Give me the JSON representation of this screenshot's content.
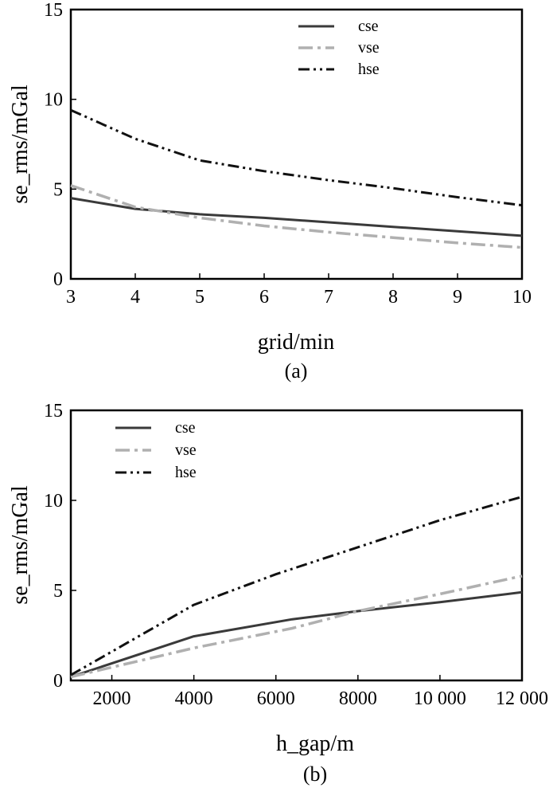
{
  "chart_data": [
    {
      "type": "line",
      "panel_label": "(a)",
      "xlabel": "grid/min",
      "ylabel": "se_rms/mGal",
      "xlim": [
        3,
        10
      ],
      "ylim": [
        0,
        15
      ],
      "xticks": [
        3,
        4,
        5,
        6,
        7,
        8,
        9,
        10
      ],
      "xtick_labels": [
        "3",
        "4",
        "5",
        "6",
        "7",
        "8",
        "9",
        "10"
      ],
      "yticks": [
        0,
        5,
        10,
        15
      ],
      "ytick_labels": [
        "0",
        "5",
        "10",
        "15"
      ],
      "legend_position": "top-right",
      "series": [
        {
          "name": "cse",
          "x": [
            3,
            4,
            5,
            6,
            7,
            8,
            9,
            10
          ],
          "values": [
            4.5,
            3.9,
            3.6,
            3.4,
            3.15,
            2.9,
            2.65,
            2.4
          ]
        },
        {
          "name": "vse",
          "x": [
            3,
            4,
            5,
            6,
            7,
            8,
            9,
            10
          ],
          "values": [
            5.2,
            4.0,
            3.4,
            2.95,
            2.6,
            2.3,
            2.0,
            1.75
          ]
        },
        {
          "name": "hse",
          "x": [
            3,
            4,
            5,
            6,
            7,
            8,
            9,
            10
          ],
          "values": [
            9.4,
            7.8,
            6.6,
            6.0,
            5.5,
            5.05,
            4.55,
            4.1
          ]
        }
      ]
    },
    {
      "type": "line",
      "panel_label": "(b)",
      "xlabel": "h_gap/m",
      "ylabel": "se_rms/mGal",
      "xlim": [
        1000,
        12000
      ],
      "ylim": [
        0,
        15
      ],
      "xticks": [
        2000,
        4000,
        6000,
        8000,
        10000,
        12000
      ],
      "xtick_labels": [
        "2000",
        "4000",
        "6000",
        "8000",
        "10 000",
        "12 000"
      ],
      "yticks": [
        0,
        5,
        10,
        15
      ],
      "ytick_labels": [
        "0",
        "5",
        "10",
        "15"
      ],
      "legend_position": "top-left",
      "series": [
        {
          "name": "cse",
          "x": [
            1000,
            4000,
            6400,
            8000,
            10000,
            12000
          ],
          "values": [
            0.2,
            2.45,
            3.4,
            3.85,
            4.35,
            4.9
          ]
        },
        {
          "name": "vse",
          "x": [
            1000,
            4000,
            6400,
            8000,
            10000,
            12000
          ],
          "values": [
            0.2,
            1.8,
            2.9,
            3.85,
            4.8,
            5.8
          ]
        },
        {
          "name": "hse",
          "x": [
            1000,
            4000,
            6000,
            8000,
            10000,
            12000
          ],
          "values": [
            0.3,
            4.2,
            5.9,
            7.4,
            8.9,
            10.2
          ]
        }
      ]
    }
  ],
  "styles": {
    "cse": {
      "color": "#3a3a3a",
      "dash": "solid"
    },
    "vse": {
      "color": "#b0b0b0",
      "dash": "dash-dot-long"
    },
    "hse": {
      "color": "#111111",
      "dash": "dash-dot-dot"
    }
  }
}
